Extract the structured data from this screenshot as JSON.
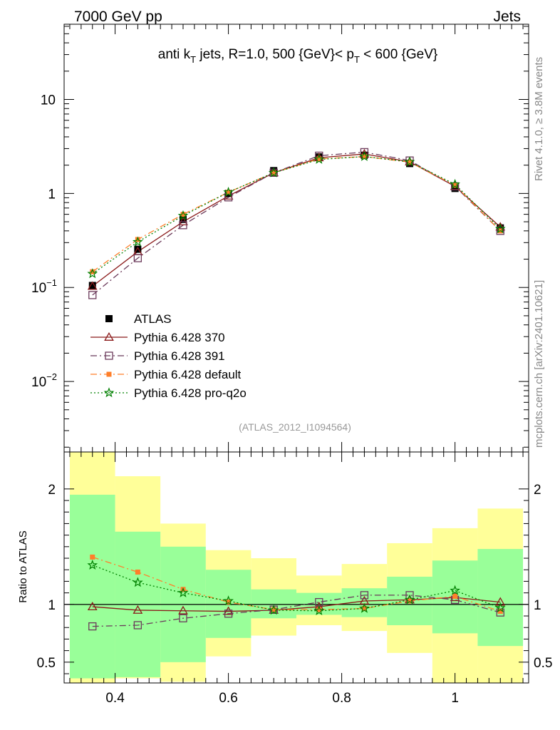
{
  "header": {
    "left_label": "7000 GeV pp",
    "right_label": "Jets"
  },
  "side_labels": {
    "top": "Rivet 4.1.0, ≥ 3.8M events",
    "bottom": "mcplots.cern.ch [arXiv:2401.10621]"
  },
  "chart_data": [
    {
      "type": "line",
      "scale": "log",
      "title": "anti k_T jets, R=1.0,  500 {GeV}< p_T < 600 {GeV}",
      "title_parts": {
        "a": "anti k",
        "a_sub": "T",
        "b": " jets, R=1.0,  500 {GeV}< p",
        "b_sub": "T",
        "c": " < 600 {GeV}"
      },
      "xlim": [
        0.31,
        1.13
      ],
      "ylim_log10": [
        -2.75,
        1.8
      ],
      "y_ticks": [
        {
          "value": 10,
          "base": "10",
          "exp": ""
        },
        {
          "value": 1,
          "base": "1",
          "exp": ""
        },
        {
          "value": 0.1,
          "base": "10",
          "exp": "−1"
        },
        {
          "value": 0.01,
          "base": "10",
          "exp": "−2"
        }
      ],
      "watermark": "(ATLAS_2012_I1094564)",
      "legend_position": "bottom-left",
      "x": [
        0.36,
        0.44,
        0.52,
        0.6,
        0.68,
        0.76,
        0.84,
        0.92,
        1.0,
        1.08
      ],
      "series": [
        {
          "name": "ATLAS",
          "marker": "filled-square",
          "color": "#000000",
          "values": [
            0.105,
            0.255,
            0.53,
            1.0,
            1.75,
            2.45,
            2.55,
            2.08,
            1.13,
            0.43
          ]
        },
        {
          "name": "Pythia 6.428 370",
          "marker": "open-triangle",
          "color": "#8b1a1a",
          "line": "solid",
          "values": [
            0.103,
            0.24,
            0.5,
            0.94,
            1.66,
            2.4,
            2.63,
            2.17,
            1.19,
            0.44
          ]
        },
        {
          "name": "Pythia 6.428 391",
          "marker": "open-square",
          "color": "#6b3a5a",
          "line": "dashdot",
          "values": [
            0.083,
            0.205,
            0.46,
            0.91,
            1.66,
            2.52,
            2.75,
            2.24,
            1.19,
            0.4
          ]
        },
        {
          "name": "Pythia 6.428 default",
          "marker": "filled-square",
          "color": "#ff7f2a",
          "line": "dashdot",
          "values": [
            0.147,
            0.324,
            0.6,
            1.03,
            1.66,
            2.33,
            2.47,
            2.15,
            1.22,
            0.4
          ]
        },
        {
          "name": "Pythia 6.428 pro-q2o",
          "marker": "star",
          "color": "#008000",
          "line": "dotted",
          "values": [
            0.14,
            0.305,
            0.58,
            1.03,
            1.66,
            2.3,
            2.47,
            2.17,
            1.25,
            0.42
          ]
        }
      ]
    },
    {
      "type": "line",
      "ylabel": "Ratio to ATLAS",
      "xlim": [
        0.31,
        1.13
      ],
      "ylim": [
        0.32,
        2.32
      ],
      "x_ticks": [
        0.4,
        0.6,
        0.8,
        1.0
      ],
      "x_tick_labels": [
        "0.4",
        "0.6",
        "0.8",
        "1"
      ],
      "y_ticks": [
        2,
        1,
        0.5
      ],
      "y_tick_labels": [
        "2",
        "1",
        "0.5"
      ],
      "uncertainty_bins": [
        {
          "x0": 0.32,
          "x1": 0.4,
          "inner": [
            0.36,
            1.95
          ],
          "outer": [
            0.32,
            2.32
          ]
        },
        {
          "x0": 0.4,
          "x1": 0.48,
          "inner": [
            0.37,
            1.63
          ],
          "outer": [
            0.36,
            2.11
          ]
        },
        {
          "x0": 0.48,
          "x1": 0.56,
          "inner": [
            0.5,
            1.5
          ],
          "outer": [
            0.33,
            1.7
          ]
        },
        {
          "x0": 0.56,
          "x1": 0.64,
          "inner": [
            0.71,
            1.3
          ],
          "outer": [
            0.55,
            1.47
          ]
        },
        {
          "x0": 0.64,
          "x1": 0.72,
          "inner": [
            0.88,
            1.13
          ],
          "outer": [
            0.73,
            1.4
          ]
        },
        {
          "x0": 0.72,
          "x1": 0.8,
          "inner": [
            0.91,
            1.1
          ],
          "outer": [
            0.82,
            1.25
          ]
        },
        {
          "x0": 0.8,
          "x1": 0.88,
          "inner": [
            0.89,
            1.14
          ],
          "outer": [
            0.77,
            1.35
          ]
        },
        {
          "x0": 0.88,
          "x1": 0.96,
          "inner": [
            0.82,
            1.24
          ],
          "outer": [
            0.58,
            1.53
          ]
        },
        {
          "x0": 0.96,
          "x1": 1.04,
          "inner": [
            0.75,
            1.38
          ],
          "outer": [
            0.32,
            1.66
          ]
        },
        {
          "x0": 1.04,
          "x1": 1.12,
          "inner": [
            0.64,
            1.48
          ],
          "outer": [
            0.32,
            1.83
          ]
        }
      ],
      "x": [
        0.36,
        0.44,
        0.52,
        0.6,
        0.68,
        0.76,
        0.84,
        0.92,
        1.0,
        1.08
      ],
      "series": [
        {
          "name": "Pythia 6.428 370",
          "marker": "open-triangle",
          "color": "#8b1a1a",
          "line": "solid",
          "values": [
            0.98,
            0.95,
            0.945,
            0.94,
            0.95,
            0.98,
            1.03,
            1.04,
            1.06,
            1.02
          ]
        },
        {
          "name": "Pythia 6.428 391",
          "marker": "open-square",
          "color": "#6b3a5a",
          "line": "dashdot",
          "values": [
            0.81,
            0.82,
            0.88,
            0.92,
            0.955,
            1.02,
            1.08,
            1.08,
            1.04,
            0.93
          ]
        },
        {
          "name": "Pythia 6.428 default",
          "marker": "filled-square",
          "color": "#ff7f2a",
          "line": "dashdot",
          "values": [
            1.41,
            1.28,
            1.13,
            1.02,
            0.955,
            0.955,
            0.965,
            1.03,
            1.07,
            0.94
          ]
        },
        {
          "name": "Pythia 6.428 pro-q2o",
          "marker": "star",
          "color": "#008000",
          "line": "dotted",
          "values": [
            1.34,
            1.19,
            1.1,
            1.03,
            0.95,
            0.945,
            0.965,
            1.04,
            1.12,
            0.97
          ]
        }
      ]
    }
  ]
}
